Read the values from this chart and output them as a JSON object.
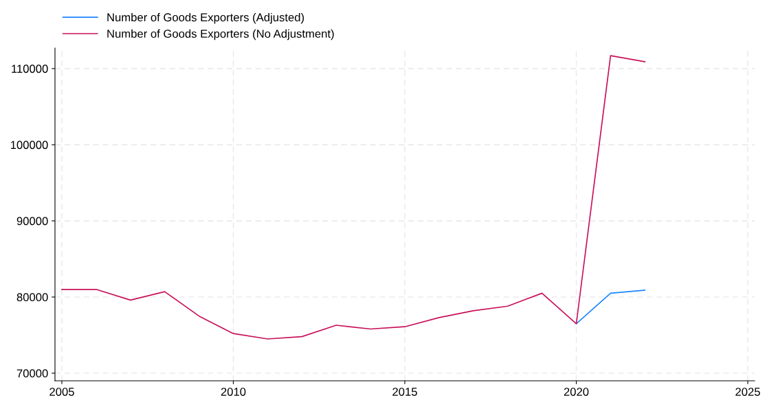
{
  "chart_data": {
    "type": "line",
    "x": [
      2005,
      2006,
      2007,
      2008,
      2009,
      2010,
      2011,
      2012,
      2013,
      2014,
      2015,
      2016,
      2017,
      2018,
      2019,
      2020,
      2021,
      2022
    ],
    "series": [
      {
        "name": "Number of Goods Exporters (Adjusted)",
        "color": "#1a85ff",
        "values": [
          null,
          null,
          null,
          null,
          null,
          null,
          null,
          null,
          null,
          null,
          null,
          null,
          null,
          null,
          null,
          76500,
          80500,
          80900
        ]
      },
      {
        "name": "Number of Goods Exporters (No Adjustment)",
        "color": "#c8105a",
        "values": [
          81000,
          81000,
          79600,
          80700,
          77500,
          75200,
          74500,
          74800,
          76300,
          75800,
          76100,
          77300,
          78200,
          78800,
          80500,
          76500,
          111700,
          110900
        ]
      }
    ],
    "xlim": [
      2004.8,
      2025.2
    ],
    "xticks": [
      2005,
      2010,
      2015,
      2020,
      2025
    ],
    "ylim": [
      69000,
      112700
    ],
    "yticks": [
      70000,
      80000,
      90000,
      100000,
      110000
    ],
    "grid": true,
    "legend": "top left",
    "marker": "none",
    "line_style": "solid"
  }
}
